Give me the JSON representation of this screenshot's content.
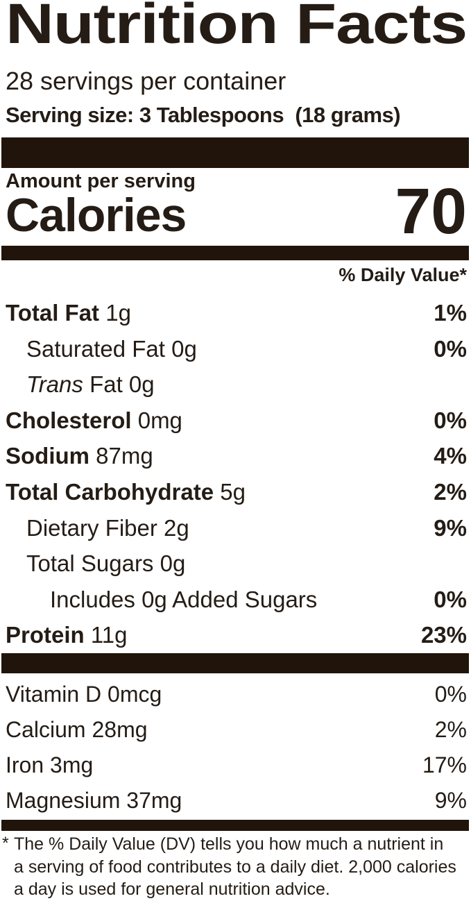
{
  "title": "Nutrition Facts",
  "servings_per_container": "28 servings per container",
  "serving_size": "Serving size: 3 Tablespoons  (18 grams)",
  "amount_per_serving_label": "Amount per serving",
  "calories_label": "Calories",
  "calories_value": "70",
  "daily_value_header": "% Daily Value*",
  "nutrients": [
    {
      "name": "Total Fat",
      "amount": "1g",
      "dv": "1%",
      "bold": true,
      "dv_bold": true,
      "indent": 0
    },
    {
      "name": "Saturated Fat",
      "amount": "0g",
      "dv": "0%",
      "bold": false,
      "dv_bold": true,
      "indent": 1
    },
    {
      "name": "Fat",
      "italic_prefix": "Trans",
      "amount": "0g",
      "dv": "",
      "bold": false,
      "dv_bold": false,
      "indent": 1
    },
    {
      "name": "Cholesterol",
      "amount": "0mg",
      "dv": "0%",
      "bold": true,
      "dv_bold": true,
      "indent": 0
    },
    {
      "name": "Sodium",
      "amount": "87mg",
      "dv": "4%",
      "bold": true,
      "dv_bold": true,
      "indent": 0
    },
    {
      "name": "Total Carbohydrate",
      "amount": "5g",
      "dv": "2%",
      "bold": true,
      "dv_bold": true,
      "indent": 0
    },
    {
      "name": "Dietary Fiber",
      "amount": "2g",
      "dv": "9%",
      "bold": false,
      "dv_bold": true,
      "indent": 1
    },
    {
      "name": "Total Sugars",
      "amount": "0g",
      "dv": "",
      "bold": false,
      "dv_bold": false,
      "indent": 1
    },
    {
      "name": "Includes 0g Added Sugars",
      "amount": "",
      "dv": "0%",
      "bold": false,
      "dv_bold": true,
      "indent": 2
    },
    {
      "name": "Protein",
      "amount": "11g",
      "dv": "23%",
      "bold": true,
      "dv_bold": true,
      "indent": 0
    }
  ],
  "micronutrients": [
    {
      "name": "Vitamin D",
      "amount": "0mcg",
      "dv": "0%"
    },
    {
      "name": "Calcium",
      "amount": "28mg",
      "dv": "2%"
    },
    {
      "name": "Iron",
      "amount": "3mg",
      "dv": "17%"
    },
    {
      "name": "Magnesium",
      "amount": "37mg",
      "dv": "9%"
    }
  ],
  "footnote_marker": "*",
  "footnote_lines": [
    "The % Daily Value (DV) tells you how much a nutrient in",
    "a serving of food contributes to a daily diet. 2,000 calories",
    "a day is used for general nutrition advice."
  ],
  "colors": {
    "ink": "#241c15",
    "bar": "#21140a",
    "background": "#ffffff"
  }
}
